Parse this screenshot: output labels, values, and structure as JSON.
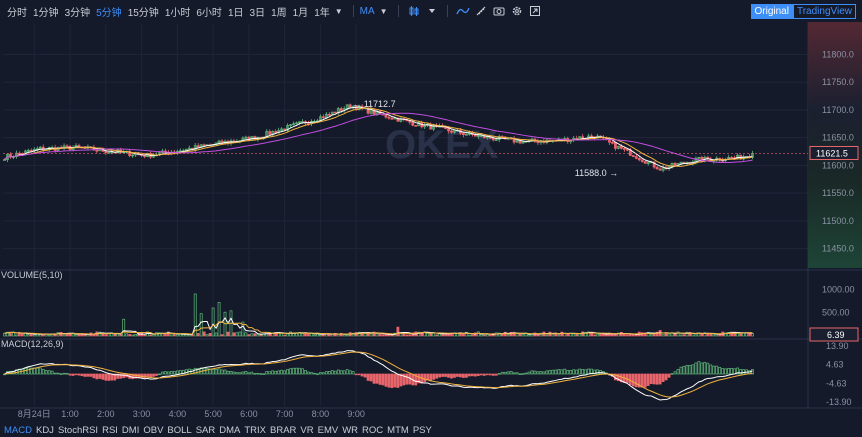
{
  "toolbar": {
    "timeframes": [
      "分时",
      "1分钟",
      "3分钟",
      "5分钟",
      "15分钟",
      "1小时",
      "6小时",
      "1日",
      "3日",
      "1周",
      "1月",
      "1年"
    ],
    "active_timeframe": "5分钟",
    "indicator": "MA",
    "views": {
      "original": "Original",
      "tradingview": "TradingView"
    },
    "active_view": "Original"
  },
  "indicator_tabs": [
    "MACD",
    "KDJ",
    "StochRSI",
    "RSI",
    "DMI",
    "OBV",
    "BOLL",
    "SAR",
    "DMA",
    "TRIX",
    "BRAR",
    "VR",
    "EMV",
    "WR",
    "ROC",
    "MTM",
    "PSY"
  ],
  "active_indicator_tab": "MACD",
  "watermark": "OKEX",
  "colors": {
    "up": "#5fb877",
    "down": "#e8656b",
    "bg": "#151a2b",
    "accent": "#3e8ef7"
  },
  "chart_data": {
    "type": "candlestick",
    "x_tick_labels": [
      "8月24日",
      "1:00",
      "2:00",
      "3:00",
      "4:00",
      "5:00",
      "6:00",
      "7:00",
      "8:00",
      "9:00"
    ],
    "price_axis": {
      "ticks": [
        11800,
        11750,
        11700,
        11650,
        11600,
        11550,
        11500,
        11450
      ],
      "tick_labels": [
        "11800.0",
        "11750.0",
        "11700.0",
        "11650.0",
        "11600.0",
        "11550.0",
        "11500.0",
        "11450.0"
      ],
      "ylim": [
        11415,
        11855
      ]
    },
    "last_price": "11621.5",
    "annotations": {
      "high": "11712.7",
      "low": "11588.0"
    },
    "close_anchors": [
      [
        0,
        11615
      ],
      [
        12,
        11630
      ],
      [
        24,
        11632
      ],
      [
        36,
        11625
      ],
      [
        48,
        11618
      ],
      [
        60,
        11628
      ],
      [
        72,
        11640
      ],
      [
        84,
        11650
      ],
      [
        96,
        11670
      ],
      [
        108,
        11690
      ],
      [
        116,
        11708
      ],
      [
        126,
        11692
      ],
      [
        138,
        11675
      ],
      [
        150,
        11662
      ],
      [
        162,
        11650
      ],
      [
        174,
        11643
      ],
      [
        186,
        11645
      ],
      [
        198,
        11653
      ],
      [
        210,
        11622
      ],
      [
        220,
        11594
      ],
      [
        232,
        11610
      ],
      [
        246,
        11614
      ],
      [
        252,
        11621.5
      ]
    ],
    "close_points_count": 252,
    "volume_panel": {
      "label": "VOLUME(5,10)",
      "ticks": [
        "1000.00",
        "500.00"
      ],
      "last_value": "6.39",
      "ylim": [
        0,
        1200
      ],
      "spike_bars": [
        [
          40,
          360
        ],
        [
          64,
          900
        ],
        [
          66,
          480
        ],
        [
          70,
          600
        ],
        [
          72,
          720
        ],
        [
          74,
          510
        ],
        [
          76,
          540
        ],
        [
          80,
          300
        ],
        [
          132,
          190
        ],
        [
          220,
          120
        ]
      ]
    },
    "macd_panel": {
      "label": "MACD(12,26,9)",
      "ticks": [
        "13.90",
        "4.63",
        "-4.63",
        "-13.90"
      ],
      "ylim": [
        -16,
        16
      ]
    },
    "time_markers_per_hour": 12,
    "bar_index_at_tick_1": 22
  }
}
